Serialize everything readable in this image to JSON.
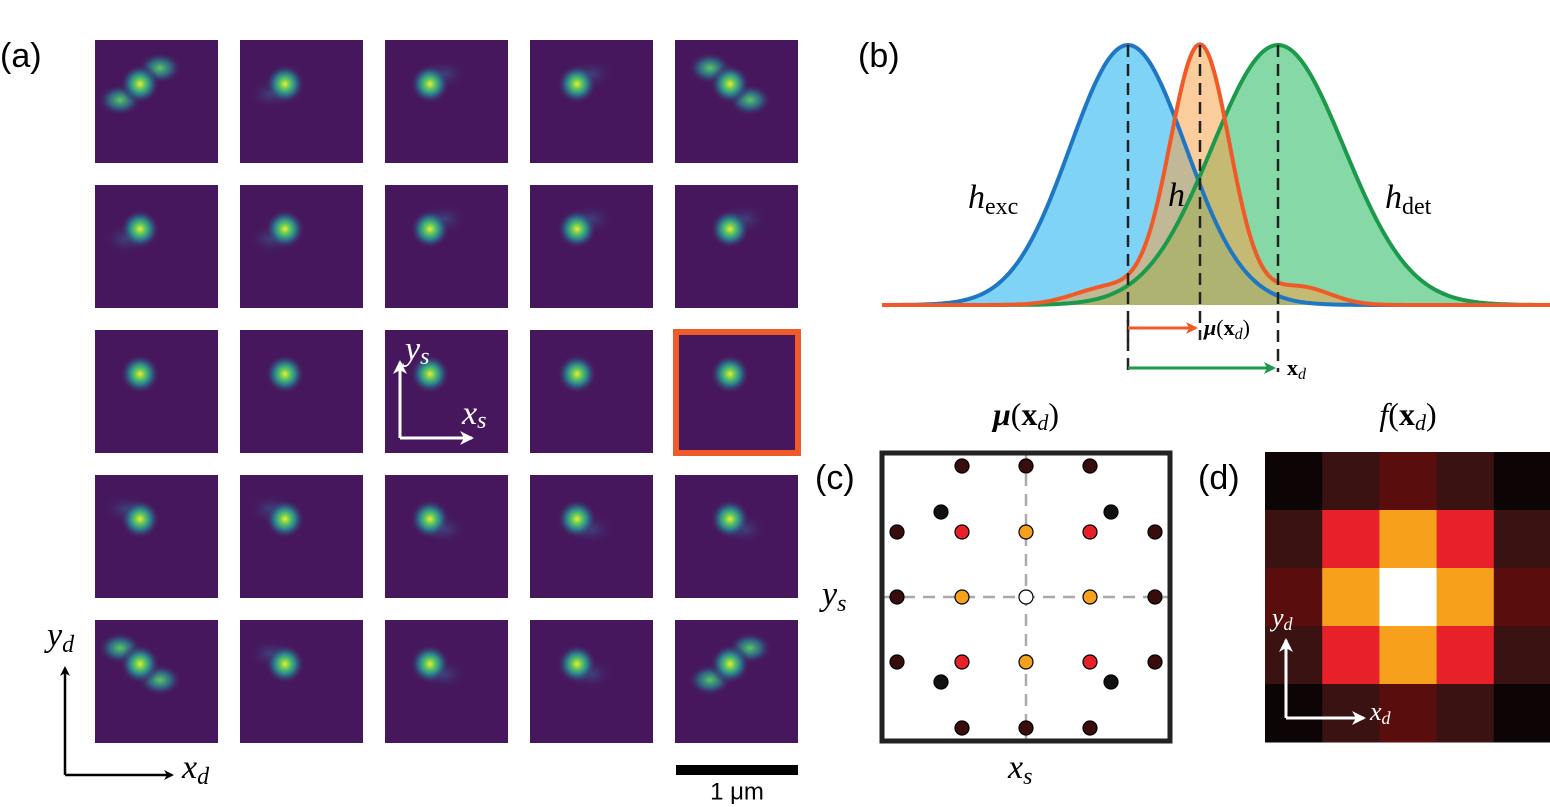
{
  "panels": {
    "a": {
      "label": "(a)",
      "scale_bar": "1 μm",
      "axis_x": {
        "base": "x",
        "sub": "d"
      },
      "axis_y": {
        "base": "y",
        "sub": "d"
      },
      "inset_x": {
        "base": "x",
        "sub": "s"
      },
      "inset_y": {
        "base": "y",
        "sub": "s"
      }
    },
    "b": {
      "label": "(b)",
      "h_exc": {
        "base": "h",
        "sub": "exc"
      },
      "h": "h",
      "h_det": {
        "base": "h",
        "sub": "det"
      },
      "mu": [
        "μ",
        "(",
        "x",
        "d",
        ")"
      ],
      "xd": {
        "base": "x",
        "sub": "d"
      }
    },
    "c": {
      "label": "(c)",
      "title": [
        "μ",
        "(",
        "x",
        "d",
        ")"
      ],
      "axis_x": {
        "base": "x",
        "sub": "s"
      },
      "axis_y": {
        "base": "y",
        "sub": "s"
      }
    },
    "d": {
      "label": "(d)",
      "title": [
        "f",
        "(",
        "x",
        "d",
        ")"
      ],
      "axis_x": {
        "base": "x",
        "sub": "d"
      },
      "axis_y": {
        "base": "y",
        "sub": "d"
      }
    }
  }
}
